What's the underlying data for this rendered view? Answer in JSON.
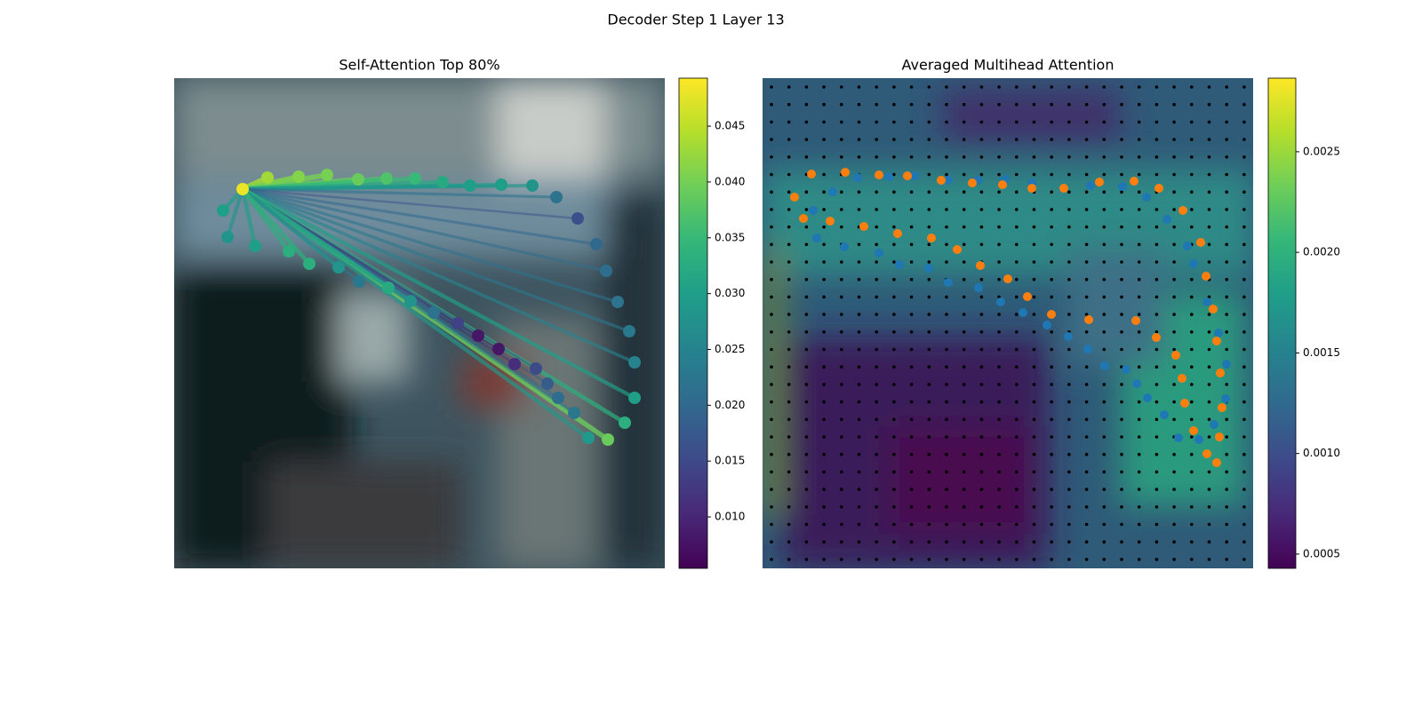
{
  "title": "Decoder Step 1 Layer 13",
  "chart_data": [
    {
      "type": "scatter",
      "title": "Self-Attention Top 80%",
      "colormap": "viridis",
      "xlim": [
        0,
        552
      ],
      "ylim": [
        552,
        0
      ],
      "x": [
        77,
        105,
        140,
        172,
        207,
        239,
        271,
        302,
        333,
        368,
        403,
        430,
        454,
        475,
        486,
        499,
        512,
        518,
        518,
        507,
        488,
        466,
        450,
        432,
        420,
        407,
        383,
        365,
        342,
        319,
        292,
        266,
        241,
        208,
        185,
        152,
        129,
        91,
        60,
        55
      ],
      "y": [
        125,
        112,
        111,
        109,
        114,
        113,
        113,
        117,
        121,
        120,
        121,
        134,
        158,
        187,
        217,
        252,
        285,
        320,
        360,
        388,
        407,
        405,
        377,
        360,
        344,
        327,
        322,
        305,
        290,
        276,
        264,
        251,
        236,
        229,
        213,
        209,
        195,
        189,
        179,
        149
      ],
      "values": [
        0.048,
        0.043,
        0.041,
        0.04,
        0.039,
        0.037,
        0.035,
        0.032,
        0.03,
        0.03,
        0.028,
        0.022,
        0.016,
        0.02,
        0.021,
        0.022,
        0.023,
        0.025,
        0.03,
        0.033,
        0.039,
        0.029,
        0.023,
        0.021,
        0.018,
        0.015,
        0.011,
        0.008,
        0.008,
        0.014,
        0.022,
        0.028,
        0.032,
        0.023,
        0.028,
        0.033,
        0.033,
        0.03,
        0.028,
        0.03
      ],
      "clim": [
        0.00539,
        0.0493
      ],
      "cticks": [
        {
          "value": 0.01,
          "label": "0.010"
        },
        {
          "value": 0.015,
          "label": "0.015"
        },
        {
          "value": 0.02,
          "label": "0.020"
        },
        {
          "value": 0.025,
          "label": "0.025"
        },
        {
          "value": 0.03,
          "label": "0.030"
        },
        {
          "value": 0.035,
          "label": "0.035"
        },
        {
          "value": 0.04,
          "label": "0.040"
        },
        {
          "value": 0.045,
          "label": "0.045"
        }
      ]
    },
    {
      "type": "scatter",
      "title": "Averaged Multihead Attention",
      "colormap": "viridis",
      "xlim": [
        0,
        552
      ],
      "ylim": [
        552,
        0
      ],
      "series": [
        {
          "color": "#1f77b4",
          "x": [
            57,
            79,
            107,
            142,
            171,
            209,
            242,
            273,
            303,
            369,
            405,
            432,
            455,
            478,
            485,
            500,
            513,
            522,
            521,
            508,
            491,
            468,
            452,
            433,
            421,
            409,
            385,
            366,
            344,
            320,
            293,
            268,
            243,
            209,
            187,
            154,
            131,
            92,
            61
          ],
          "y": [
            149,
            128,
            112,
            111,
            110,
            115,
            115,
            114,
            118,
            121,
            122,
            134,
            159,
            189,
            209,
            252,
            287,
            322,
            361,
            390,
            407,
            405,
            379,
            360,
            344,
            328,
            324,
            305,
            291,
            278,
            264,
            252,
            236,
            230,
            214,
            210,
            197,
            190,
            180
          ]
        },
        {
          "color": "#ff7f0e",
          "x": [
            36,
            55,
            93,
            131,
            163,
            201,
            236,
            270,
            303,
            339,
            379,
            418,
            446,
            473,
            493,
            499,
            507,
            511,
            515,
            517,
            514,
            511,
            500,
            485,
            475,
            472,
            465,
            443,
            420,
            367,
            325,
            298,
            276,
            245,
            219,
            190,
            152,
            114,
            76,
            46
          ],
          "y": [
            134,
            108,
            106,
            109,
            110,
            115,
            118,
            120,
            124,
            124,
            117,
            116,
            124,
            149,
            185,
            223,
            260,
            296,
            332,
            371,
            404,
            433,
            423,
            397,
            366,
            338,
            312,
            292,
            273,
            272,
            266,
            246,
            226,
            211,
            193,
            180,
            175,
            167,
            161,
            158
          ]
        }
      ],
      "clim": [
        0.000429,
        0.002866
      ],
      "cticks": [
        {
          "value": 0.0005,
          "label": "0.0005"
        },
        {
          "value": 0.001,
          "label": "0.0010"
        },
        {
          "value": 0.0015,
          "label": "0.0015"
        },
        {
          "value": 0.002,
          "label": "0.0020"
        },
        {
          "value": 0.0025,
          "label": "0.0025"
        }
      ]
    }
  ]
}
